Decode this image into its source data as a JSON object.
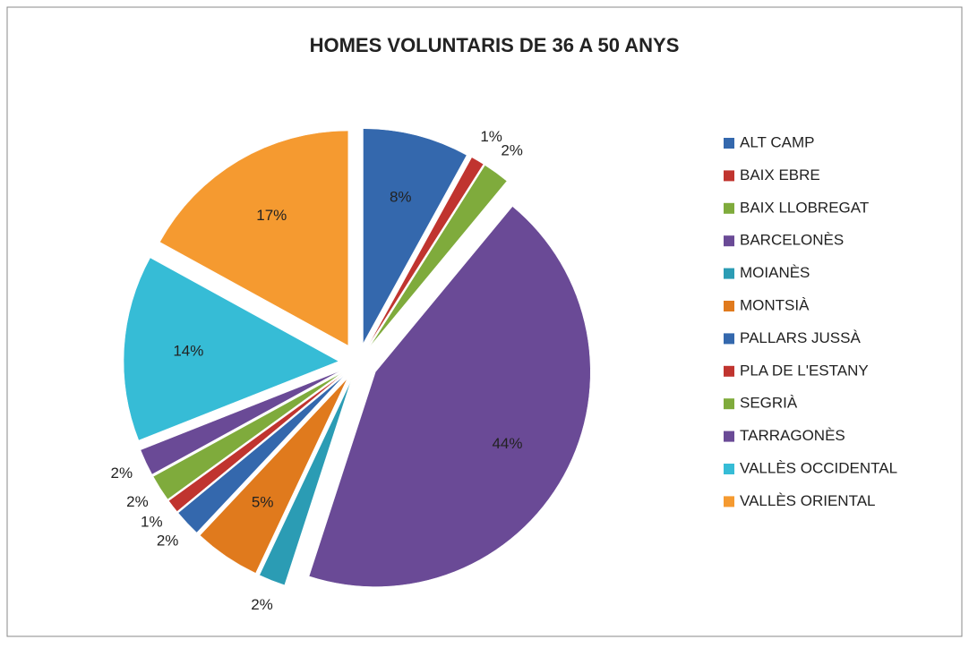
{
  "chart_data": {
    "type": "pie",
    "title": "HOMES VOLUNTARIS DE 36 A 50 ANYS",
    "categories": [
      "ALT CAMP",
      "BAIX EBRE",
      "BAIX LLOBREGAT",
      "BARCELONÈS",
      "MOIANÈS",
      "MONTSIÀ",
      "PALLARS JUSSÀ",
      "PLA DE L'ESTANY",
      "SEGRIÀ",
      "TARRAGONÈS",
      "VALLÈS OCCIDENTAL",
      "VALLÈS ORIENTAL"
    ],
    "values": [
      8,
      1,
      2,
      44,
      2,
      5,
      2,
      1,
      2,
      2,
      14,
      17
    ],
    "value_labels": [
      "8%",
      "1%",
      "2%",
      "44%",
      "2%",
      "5%",
      "2%",
      "1%",
      "2%",
      "2%",
      "14%",
      "17%"
    ],
    "colors": [
      "#3468ad",
      "#c0342f",
      "#7fab3c",
      "#6a4a96",
      "#2b9cb4",
      "#e07a1d",
      "#3468ad",
      "#c0342f",
      "#7fab3c",
      "#6a4a96",
      "#36bcd6",
      "#f59a30"
    ],
    "legend": "right"
  }
}
